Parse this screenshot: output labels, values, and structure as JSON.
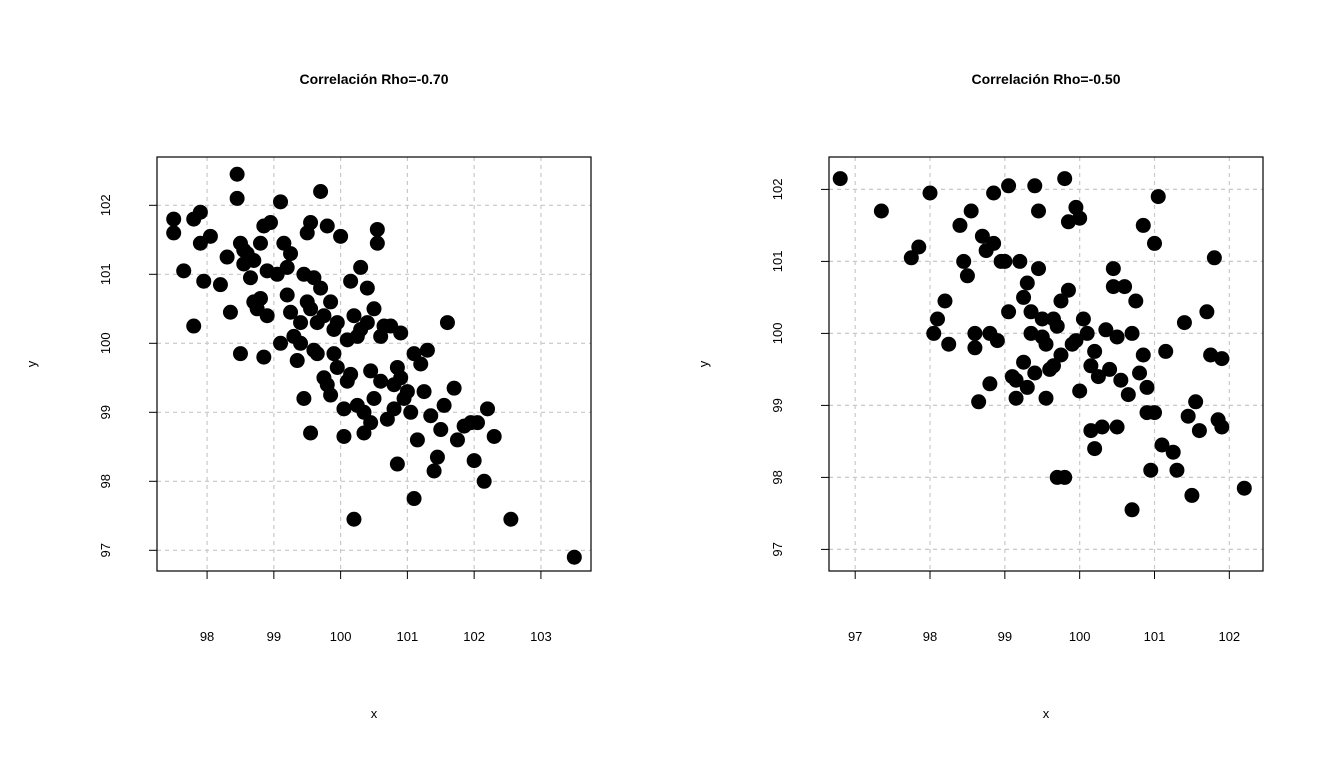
{
  "chart_data": [
    {
      "type": "scatter",
      "title": "Correlación Rho=-0.70",
      "xlabel": "x",
      "ylabel": "y",
      "xlim": [
        97.25,
        103.75
      ],
      "ylim": [
        96.7,
        102.7
      ],
      "xticks": [
        98,
        99,
        100,
        101,
        102,
        103
      ],
      "yticks": [
        97,
        98,
        99,
        100,
        101,
        102
      ],
      "grid": true,
      "marker_color": "#000000",
      "grid_color": "#c8c8c8",
      "series": [
        {
          "x": [
            97.5,
            97.5,
            97.65,
            97.8,
            97.8,
            97.9,
            97.9,
            97.95,
            98.05,
            98.2,
            98.3,
            98.35,
            98.45,
            98.45,
            98.5,
            98.5,
            98.55,
            98.55,
            98.6,
            98.65,
            98.7,
            98.7,
            98.75,
            98.8,
            98.8,
            98.85,
            98.85,
            98.9,
            98.9,
            98.95,
            99.05,
            99.1,
            99.1,
            99.15,
            99.2,
            99.2,
            99.25,
            99.25,
            99.3,
            99.35,
            99.4,
            99.4,
            99.45,
            99.45,
            99.5,
            99.5,
            99.55,
            99.55,
            99.55,
            99.6,
            99.6,
            99.65,
            99.65,
            99.7,
            99.7,
            99.75,
            99.75,
            99.8,
            99.8,
            99.85,
            99.85,
            99.9,
            99.9,
            99.95,
            99.95,
            100.0,
            100.05,
            100.05,
            100.1,
            100.1,
            100.15,
            100.15,
            100.2,
            100.2,
            100.25,
            100.25,
            100.3,
            100.3,
            100.35,
            100.35,
            100.4,
            100.4,
            100.45,
            100.45,
            100.5,
            100.5,
            100.55,
            100.55,
            100.6,
            100.6,
            100.65,
            100.7,
            100.75,
            100.8,
            100.8,
            100.85,
            100.85,
            100.9,
            100.9,
            100.95,
            101.0,
            101.05,
            101.1,
            101.1,
            101.15,
            101.2,
            101.25,
            101.3,
            101.35,
            101.4,
            101.45,
            101.5,
            101.55,
            101.6,
            101.7,
            101.75,
            101.85,
            101.95,
            102.0,
            102.05,
            102.15,
            102.2,
            102.3,
            102.55,
            103.5
          ],
          "y": [
            101.8,
            101.6,
            101.05,
            101.8,
            100.25,
            101.9,
            101.45,
            100.9,
            101.55,
            100.85,
            101.25,
            100.45,
            102.45,
            102.1,
            101.45,
            99.85,
            101.15,
            101.35,
            101.3,
            100.95,
            100.6,
            101.2,
            100.5,
            101.45,
            100.65,
            101.7,
            99.8,
            100.4,
            101.05,
            101.75,
            101.0,
            102.05,
            100.0,
            101.45,
            100.7,
            101.1,
            100.45,
            101.3,
            100.1,
            99.75,
            100.3,
            100.0,
            99.2,
            101.0,
            100.6,
            101.6,
            98.7,
            100.5,
            101.75,
            99.9,
            100.95,
            100.3,
            99.85,
            102.2,
            100.8,
            99.5,
            100.4,
            99.4,
            101.7,
            100.6,
            99.25,
            99.85,
            100.2,
            99.65,
            100.3,
            101.55,
            98.65,
            99.05,
            99.45,
            100.05,
            100.9,
            99.55,
            97.45,
            100.4,
            100.1,
            99.1,
            100.2,
            101.1,
            98.7,
            99.0,
            100.8,
            100.3,
            99.6,
            98.85,
            100.5,
            99.2,
            101.45,
            101.65,
            99.45,
            100.1,
            100.25,
            98.9,
            100.25,
            99.4,
            99.05,
            99.65,
            98.25,
            100.15,
            99.5,
            99.2,
            99.3,
            99.0,
            97.75,
            99.85,
            98.6,
            99.7,
            99.3,
            99.9,
            98.95,
            98.15,
            98.35,
            98.75,
            99.1,
            100.3,
            99.35,
            98.6,
            98.8,
            98.85,
            98.3,
            98.85,
            98.0,
            99.05,
            98.65,
            97.45,
            96.9
          ]
        }
      ]
    },
    {
      "type": "scatter",
      "title": "Correlación Rho=-0.50",
      "xlabel": "x",
      "ylabel": "y",
      "xlim": [
        96.65,
        102.45
      ],
      "ylim": [
        96.7,
        102.45
      ],
      "xticks": [
        97,
        98,
        99,
        100,
        101,
        102
      ],
      "yticks": [
        97,
        98,
        99,
        100,
        101,
        102
      ],
      "grid": true,
      "marker_color": "#000000",
      "grid_color": "#c8c8c8",
      "series": [
        {
          "x": [
            96.8,
            97.35,
            97.75,
            97.85,
            98.0,
            98.05,
            98.1,
            98.2,
            98.25,
            98.4,
            98.45,
            98.5,
            98.55,
            98.6,
            98.6,
            98.65,
            98.7,
            98.75,
            98.8,
            98.8,
            98.85,
            98.85,
            98.9,
            98.95,
            99.0,
            99.05,
            99.05,
            99.1,
            99.15,
            99.15,
            99.2,
            99.25,
            99.25,
            99.3,
            99.3,
            99.35,
            99.35,
            99.4,
            99.4,
            99.45,
            99.45,
            99.5,
            99.5,
            99.55,
            99.55,
            99.6,
            99.65,
            99.65,
            99.7,
            99.7,
            99.75,
            99.75,
            99.8,
            99.8,
            99.85,
            99.85,
            99.9,
            99.95,
            99.95,
            100.0,
            100.0,
            100.05,
            100.1,
            100.15,
            100.15,
            100.2,
            100.2,
            100.25,
            100.3,
            100.35,
            100.4,
            100.45,
            100.45,
            100.5,
            100.5,
            100.55,
            100.6,
            100.65,
            100.7,
            100.7,
            100.75,
            100.8,
            100.85,
            100.85,
            100.9,
            100.9,
            100.95,
            101.0,
            101.0,
            101.05,
            101.1,
            101.15,
            101.25,
            101.3,
            101.4,
            101.45,
            101.5,
            101.55,
            101.6,
            101.7,
            101.75,
            101.8,
            101.85,
            101.9,
            101.9,
            102.2
          ],
          "y": [
            102.15,
            101.7,
            101.05,
            101.2,
            101.95,
            100.0,
            100.2,
            100.45,
            99.85,
            101.5,
            101.0,
            100.8,
            101.7,
            99.8,
            100.0,
            99.05,
            101.35,
            101.15,
            100.0,
            99.3,
            101.25,
            101.95,
            99.9,
            101.0,
            101.0,
            102.05,
            100.3,
            99.4,
            99.1,
            99.35,
            101.0,
            100.5,
            99.6,
            100.7,
            99.25,
            100.3,
            100.0,
            99.45,
            102.05,
            101.7,
            100.9,
            99.95,
            100.2,
            99.1,
            99.85,
            99.5,
            100.2,
            99.55,
            98.0,
            100.1,
            100.45,
            99.7,
            102.15,
            98.0,
            100.6,
            101.55,
            99.85,
            101.75,
            99.9,
            99.2,
            101.6,
            100.2,
            100.0,
            99.55,
            98.65,
            99.75,
            98.4,
            99.4,
            98.7,
            100.05,
            99.5,
            100.9,
            100.65,
            98.7,
            99.95,
            99.35,
            100.65,
            99.15,
            100.0,
            97.55,
            100.45,
            99.45,
            101.5,
            99.7,
            98.9,
            99.25,
            98.1,
            98.9,
            101.25,
            101.9,
            98.45,
            99.75,
            98.35,
            98.1,
            100.15,
            98.85,
            97.75,
            99.05,
            98.65,
            100.3,
            99.7,
            101.05,
            98.8,
            98.7,
            99.65,
            97.85
          ]
        }
      ]
    }
  ]
}
